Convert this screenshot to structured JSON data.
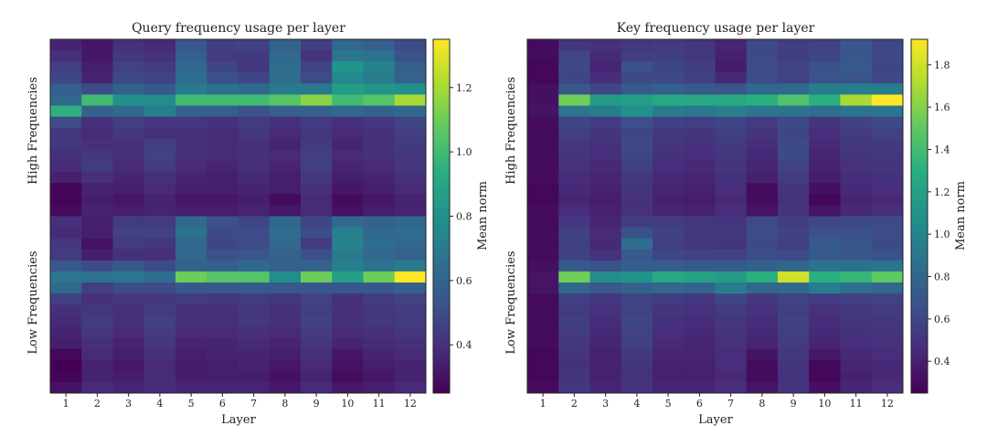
{
  "chart_data": [
    {
      "type": "heatmap",
      "title": "Query frequency usage per layer",
      "xlabel": "Layer",
      "ylabel_top": "High Frequencies",
      "ylabel_bottom": "Low Frequencies",
      "x_categories": [
        "1",
        "2",
        "3",
        "4",
        "5",
        "6",
        "7",
        "8",
        "9",
        "10",
        "11",
        "12"
      ],
      "colorbar": {
        "label": "Mean norm",
        "vmin": 0.25,
        "vmax": 1.35,
        "ticks": [
          "0.4",
          "0.6",
          "0.8",
          "1.0",
          "1.2"
        ],
        "colormap": "viridis"
      },
      "rows": 32,
      "values": [
        [
          0.36,
          0.32,
          0.4,
          0.38,
          0.55,
          0.45,
          0.46,
          0.6,
          0.45,
          0.62,
          0.58,
          0.5
        ],
        [
          0.4,
          0.32,
          0.43,
          0.4,
          0.58,
          0.44,
          0.44,
          0.62,
          0.41,
          0.68,
          0.66,
          0.52
        ],
        [
          0.45,
          0.34,
          0.46,
          0.44,
          0.62,
          0.48,
          0.42,
          0.64,
          0.47,
          0.82,
          0.74,
          0.58
        ],
        [
          0.48,
          0.36,
          0.49,
          0.47,
          0.64,
          0.52,
          0.48,
          0.64,
          0.5,
          0.76,
          0.7,
          0.6
        ],
        [
          0.58,
          0.5,
          0.6,
          0.55,
          0.7,
          0.65,
          0.62,
          0.7,
          0.7,
          0.85,
          0.82,
          0.8
        ],
        [
          0.62,
          1.0,
          0.8,
          0.78,
          1.0,
          1.0,
          1.0,
          1.05,
          1.15,
          1.0,
          1.05,
          1.2
        ],
        [
          0.95,
          0.6,
          0.62,
          0.72,
          0.6,
          0.58,
          0.52,
          0.58,
          0.58,
          0.62,
          0.6,
          0.62
        ],
        [
          0.5,
          0.4,
          0.45,
          0.42,
          0.42,
          0.4,
          0.44,
          0.4,
          0.44,
          0.4,
          0.42,
          0.48
        ],
        [
          0.42,
          0.38,
          0.42,
          0.4,
          0.4,
          0.38,
          0.42,
          0.38,
          0.42,
          0.38,
          0.4,
          0.45
        ],
        [
          0.42,
          0.4,
          0.4,
          0.45,
          0.4,
          0.38,
          0.4,
          0.36,
          0.44,
          0.36,
          0.4,
          0.44
        ],
        [
          0.4,
          0.42,
          0.4,
          0.46,
          0.4,
          0.38,
          0.4,
          0.38,
          0.45,
          0.38,
          0.4,
          0.42
        ],
        [
          0.38,
          0.44,
          0.38,
          0.44,
          0.38,
          0.36,
          0.4,
          0.36,
          0.45,
          0.36,
          0.38,
          0.42
        ],
        [
          0.35,
          0.4,
          0.36,
          0.4,
          0.36,
          0.34,
          0.38,
          0.34,
          0.42,
          0.34,
          0.36,
          0.4
        ],
        [
          0.26,
          0.36,
          0.34,
          0.38,
          0.34,
          0.34,
          0.36,
          0.34,
          0.4,
          0.32,
          0.34,
          0.38
        ],
        [
          0.26,
          0.34,
          0.32,
          0.36,
          0.32,
          0.32,
          0.34,
          0.28,
          0.38,
          0.28,
          0.32,
          0.36
        ],
        [
          0.28,
          0.36,
          0.34,
          0.36,
          0.34,
          0.34,
          0.36,
          0.32,
          0.38,
          0.3,
          0.34,
          0.36
        ],
        [
          0.4,
          0.34,
          0.44,
          0.44,
          0.62,
          0.52,
          0.48,
          0.62,
          0.48,
          0.62,
          0.6,
          0.62
        ],
        [
          0.38,
          0.34,
          0.46,
          0.46,
          0.66,
          0.5,
          0.5,
          0.64,
          0.5,
          0.72,
          0.62,
          0.64
        ],
        [
          0.42,
          0.3,
          0.44,
          0.42,
          0.62,
          0.48,
          0.5,
          0.62,
          0.44,
          0.74,
          0.64,
          0.62
        ],
        [
          0.44,
          0.34,
          0.4,
          0.4,
          0.62,
          0.52,
          0.54,
          0.6,
          0.52,
          0.7,
          0.62,
          0.6
        ],
        [
          0.55,
          0.5,
          0.55,
          0.5,
          0.6,
          0.58,
          0.62,
          0.58,
          0.6,
          0.72,
          0.66,
          0.7
        ],
        [
          0.68,
          0.66,
          0.68,
          0.64,
          1.1,
          1.05,
          1.05,
          0.78,
          1.1,
          0.86,
          1.1,
          1.35
        ],
        [
          0.62,
          0.45,
          0.5,
          0.5,
          0.55,
          0.55,
          0.56,
          0.55,
          0.55,
          0.55,
          0.55,
          0.58
        ],
        [
          0.45,
          0.4,
          0.42,
          0.42,
          0.44,
          0.42,
          0.44,
          0.42,
          0.46,
          0.4,
          0.44,
          0.46
        ],
        [
          0.4,
          0.42,
          0.4,
          0.44,
          0.4,
          0.4,
          0.42,
          0.4,
          0.45,
          0.4,
          0.42,
          0.44
        ],
        [
          0.38,
          0.44,
          0.4,
          0.46,
          0.4,
          0.4,
          0.42,
          0.4,
          0.46,
          0.4,
          0.42,
          0.44
        ],
        [
          0.36,
          0.42,
          0.38,
          0.44,
          0.38,
          0.38,
          0.4,
          0.38,
          0.44,
          0.38,
          0.4,
          0.42
        ],
        [
          0.34,
          0.4,
          0.36,
          0.42,
          0.36,
          0.36,
          0.38,
          0.36,
          0.42,
          0.36,
          0.38,
          0.4
        ],
        [
          0.27,
          0.38,
          0.34,
          0.4,
          0.34,
          0.36,
          0.36,
          0.34,
          0.4,
          0.32,
          0.36,
          0.38
        ],
        [
          0.25,
          0.36,
          0.32,
          0.38,
          0.33,
          0.34,
          0.36,
          0.32,
          0.38,
          0.3,
          0.34,
          0.36
        ],
        [
          0.26,
          0.36,
          0.34,
          0.38,
          0.34,
          0.34,
          0.34,
          0.3,
          0.36,
          0.28,
          0.32,
          0.36
        ],
        [
          0.3,
          0.38,
          0.36,
          0.38,
          0.36,
          0.36,
          0.36,
          0.32,
          0.38,
          0.32,
          0.34,
          0.38
        ]
      ]
    },
    {
      "type": "heatmap",
      "title": "Key frequency usage per layer",
      "xlabel": "Layer",
      "ylabel_top": "High Frequencies",
      "ylabel_bottom": "Low Frequencies",
      "x_categories": [
        "1",
        "2",
        "3",
        "4",
        "5",
        "6",
        "7",
        "8",
        "9",
        "10",
        "11",
        "12"
      ],
      "colorbar": {
        "label": "Mean norm",
        "vmin": 0.25,
        "vmax": 1.92,
        "ticks": [
          "0.4",
          "0.6",
          "0.8",
          "1.0",
          "1.2",
          "1.4",
          "1.6",
          "1.8"
        ],
        "colormap": "viridis"
      },
      "rows": 32,
      "values": [
        [
          0.3,
          0.5,
          0.48,
          0.52,
          0.54,
          0.5,
          0.42,
          0.62,
          0.55,
          0.58,
          0.7,
          0.6
        ],
        [
          0.3,
          0.6,
          0.45,
          0.55,
          0.56,
          0.52,
          0.4,
          0.62,
          0.55,
          0.6,
          0.7,
          0.62
        ],
        [
          0.28,
          0.62,
          0.42,
          0.66,
          0.6,
          0.55,
          0.38,
          0.64,
          0.58,
          0.66,
          0.72,
          0.6
        ],
        [
          0.28,
          0.6,
          0.46,
          0.62,
          0.62,
          0.56,
          0.44,
          0.64,
          0.58,
          0.68,
          0.68,
          0.62
        ],
        [
          0.32,
          0.7,
          0.6,
          0.72,
          0.76,
          0.72,
          0.7,
          0.82,
          0.82,
          0.95,
          0.95,
          0.95
        ],
        [
          0.32,
          1.55,
          1.15,
          1.18,
          1.25,
          1.25,
          1.25,
          1.3,
          1.45,
          1.3,
          1.7,
          1.92
        ],
        [
          0.34,
          0.9,
          0.95,
          1.1,
          0.95,
          0.92,
          0.98,
          0.9,
          0.88,
          0.85,
          0.88,
          0.9
        ],
        [
          0.3,
          0.6,
          0.55,
          0.65,
          0.58,
          0.56,
          0.6,
          0.54,
          0.62,
          0.5,
          0.58,
          0.62
        ],
        [
          0.3,
          0.56,
          0.5,
          0.6,
          0.52,
          0.5,
          0.56,
          0.5,
          0.6,
          0.46,
          0.54,
          0.58
        ],
        [
          0.3,
          0.52,
          0.48,
          0.62,
          0.5,
          0.48,
          0.54,
          0.46,
          0.62,
          0.44,
          0.52,
          0.54
        ],
        [
          0.3,
          0.5,
          0.46,
          0.6,
          0.48,
          0.46,
          0.52,
          0.44,
          0.62,
          0.42,
          0.5,
          0.52
        ],
        [
          0.3,
          0.48,
          0.44,
          0.56,
          0.46,
          0.44,
          0.5,
          0.42,
          0.58,
          0.4,
          0.48,
          0.5
        ],
        [
          0.3,
          0.46,
          0.42,
          0.52,
          0.44,
          0.42,
          0.48,
          0.4,
          0.54,
          0.38,
          0.46,
          0.48
        ],
        [
          0.28,
          0.44,
          0.4,
          0.5,
          0.42,
          0.4,
          0.46,
          0.3,
          0.5,
          0.32,
          0.44,
          0.46
        ],
        [
          0.28,
          0.42,
          0.38,
          0.48,
          0.4,
          0.38,
          0.44,
          0.3,
          0.48,
          0.28,
          0.42,
          0.44
        ],
        [
          0.3,
          0.46,
          0.4,
          0.48,
          0.42,
          0.4,
          0.46,
          0.34,
          0.5,
          0.34,
          0.44,
          0.46
        ],
        [
          0.3,
          0.52,
          0.42,
          0.55,
          0.55,
          0.52,
          0.5,
          0.62,
          0.55,
          0.6,
          0.62,
          0.62
        ],
        [
          0.3,
          0.58,
          0.45,
          0.66,
          0.58,
          0.52,
          0.52,
          0.64,
          0.58,
          0.66,
          0.66,
          0.64
        ],
        [
          0.3,
          0.56,
          0.44,
          0.85,
          0.56,
          0.52,
          0.5,
          0.62,
          0.56,
          0.72,
          0.7,
          0.62
        ],
        [
          0.3,
          0.58,
          0.48,
          0.72,
          0.6,
          0.58,
          0.58,
          0.64,
          0.62,
          0.72,
          0.7,
          0.66
        ],
        [
          0.32,
          0.72,
          0.66,
          0.74,
          0.74,
          0.72,
          0.72,
          0.76,
          0.8,
          0.88,
          0.86,
          0.9
        ],
        [
          0.34,
          1.55,
          1.05,
          1.1,
          1.25,
          1.2,
          1.15,
          1.3,
          1.8,
          1.3,
          1.35,
          1.5
        ],
        [
          0.34,
          0.8,
          0.7,
          0.78,
          0.8,
          0.78,
          0.95,
          0.8,
          0.82,
          0.95,
          0.85,
          0.8
        ],
        [
          0.3,
          0.56,
          0.52,
          0.58,
          0.54,
          0.52,
          0.6,
          0.52,
          0.58,
          0.54,
          0.56,
          0.58
        ],
        [
          0.3,
          0.54,
          0.48,
          0.58,
          0.5,
          0.48,
          0.54,
          0.48,
          0.56,
          0.48,
          0.52,
          0.54
        ],
        [
          0.3,
          0.56,
          0.46,
          0.6,
          0.48,
          0.46,
          0.52,
          0.46,
          0.58,
          0.46,
          0.5,
          0.52
        ],
        [
          0.3,
          0.54,
          0.44,
          0.58,
          0.46,
          0.44,
          0.5,
          0.44,
          0.56,
          0.44,
          0.48,
          0.5
        ],
        [
          0.3,
          0.52,
          0.42,
          0.56,
          0.44,
          0.42,
          0.48,
          0.42,
          0.54,
          0.42,
          0.46,
          0.48
        ],
        [
          0.28,
          0.5,
          0.4,
          0.52,
          0.42,
          0.42,
          0.46,
          0.34,
          0.52,
          0.36,
          0.44,
          0.46
        ],
        [
          0.28,
          0.48,
          0.4,
          0.5,
          0.4,
          0.4,
          0.46,
          0.3,
          0.5,
          0.28,
          0.42,
          0.44
        ],
        [
          0.28,
          0.5,
          0.4,
          0.48,
          0.4,
          0.4,
          0.44,
          0.3,
          0.48,
          0.28,
          0.4,
          0.44
        ],
        [
          0.3,
          0.52,
          0.42,
          0.5,
          0.42,
          0.42,
          0.46,
          0.34,
          0.5,
          0.32,
          0.42,
          0.46
        ]
      ]
    }
  ]
}
